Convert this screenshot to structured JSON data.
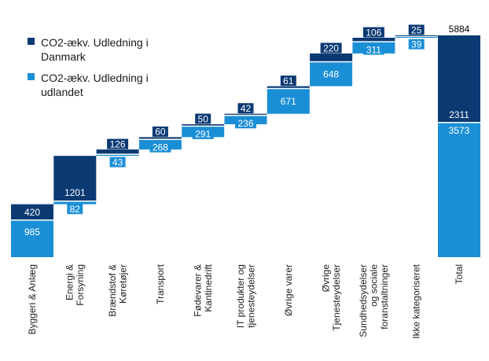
{
  "chart_data": {
    "type": "bar",
    "subtype": "stacked-waterfall",
    "title": "",
    "xlabel": "",
    "ylabel": "",
    "ylim": [
      0,
      5884
    ],
    "categories": [
      [
        "Byggeri & Anlæg"
      ],
      [
        "Energi &",
        "Forsyning"
      ],
      [
        "Brændstof &",
        "Køretøjer"
      ],
      [
        "Transport"
      ],
      [
        "Fødevarer &",
        "Kantinedrift"
      ],
      [
        "IT produkter og",
        "tjenesteydelser"
      ],
      [
        "Øvrige varer"
      ],
      [
        "Øvrige",
        "Tjenesteydelser"
      ],
      [
        "Sundhedsydelser",
        "og sociale",
        "foranstaltninger"
      ],
      [
        "Ikke kategoriseret"
      ],
      [
        "Total"
      ]
    ],
    "series": [
      {
        "name": "CO2-ækv. Udledning i Danmark",
        "values": [
          420,
          1201,
          126,
          60,
          50,
          42,
          61,
          220,
          106,
          25,
          2311
        ]
      },
      {
        "name": "CO2-ækv. Udledning i udlandet",
        "values": [
          985,
          82,
          43,
          268,
          291,
          236,
          671,
          648,
          311,
          39,
          3573
        ]
      }
    ],
    "total": 5884,
    "legend_position": "top-left",
    "grid": false,
    "colors": {
      "danmark": "#0b3a73",
      "udlandet": "#1b8fd6",
      "connector": "#7a7a7a"
    }
  }
}
